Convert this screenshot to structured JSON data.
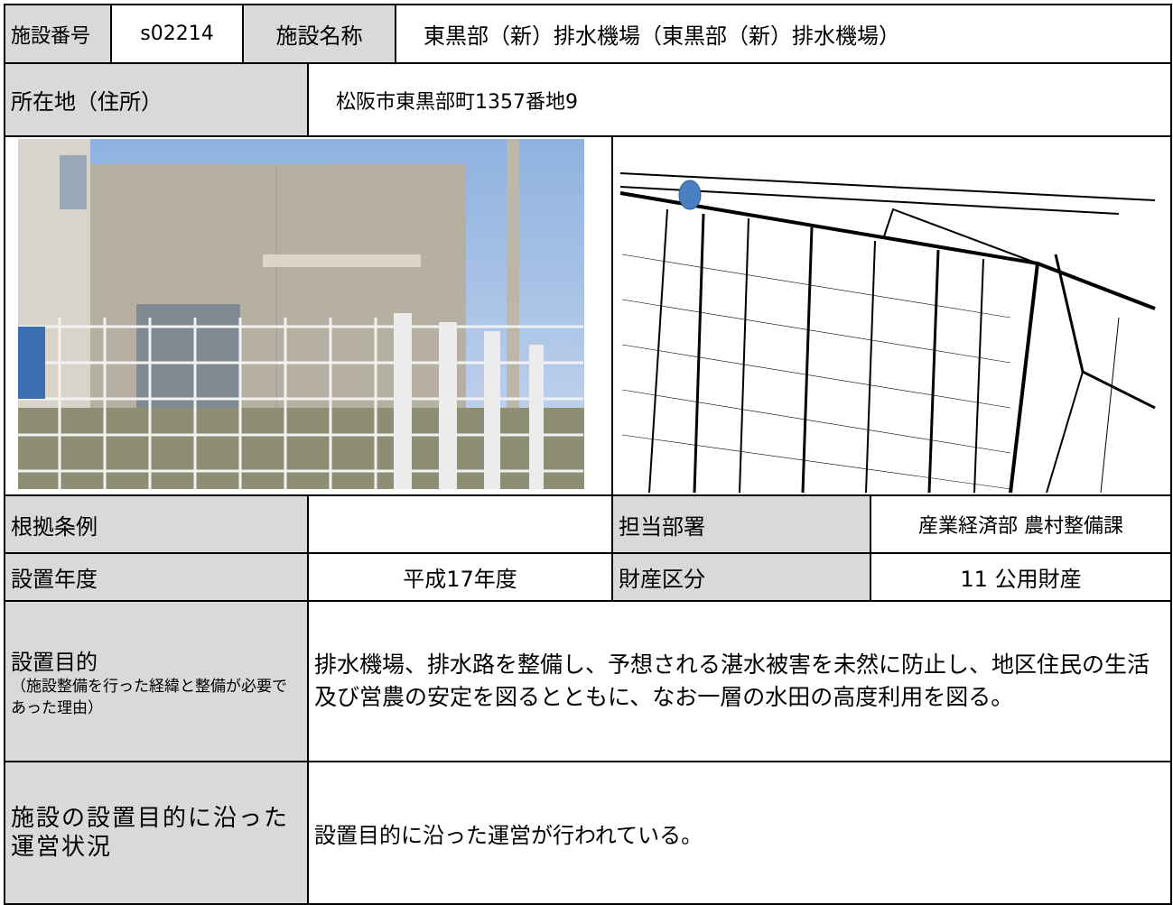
{
  "header": {
    "facility_number_label": "施設番号",
    "facility_number": "s02214",
    "facility_name_label": "施設名称",
    "facility_name": "東黒部（新）排水機場（東黒部（新）排水機場）"
  },
  "location": {
    "label": "所在地（住所）",
    "address": "松阪市東黒部町1357番地9"
  },
  "details": {
    "ordinance_label": "根拠条例",
    "department_label": "担当部署",
    "department": "産業経済部 農村整備課",
    "year_label": "設置年度",
    "year": "平成17年度",
    "property_label": "財産区分",
    "property": "11 公用財産"
  },
  "purpose": {
    "label": "設置目的",
    "note": "（施設整備を行った経緯と整備が必要であった理由）",
    "text": "排水機場、排水路を整備し、予想される湛水被害を未然に防止し、地区住民の生活及び営農の安定を図るとともに、なお一層の水田の高度利用を図る。"
  },
  "operation": {
    "label": "施設の設置目的に沿った運営状況",
    "text": "設置目的に沿った運営が行われている。"
  }
}
